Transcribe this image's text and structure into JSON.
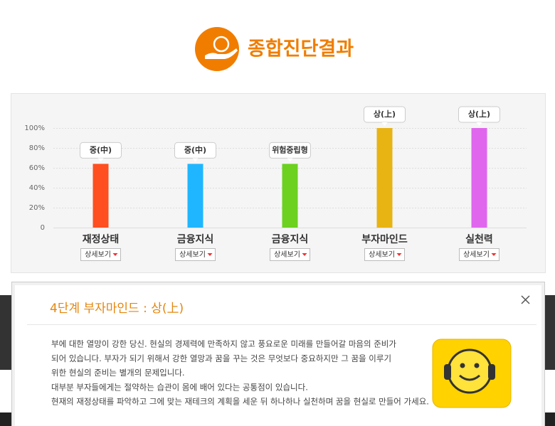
{
  "header": {
    "title": "종합진단결과"
  },
  "chart_data": {
    "type": "bar",
    "categories": [
      "재정상태",
      "금융지식",
      "금융지식",
      "부자마인드",
      "실천력"
    ],
    "values": [
      64,
      64,
      64,
      100,
      100
    ],
    "bar_labels": [
      "중(中)",
      "중(中)",
      "위험중립형",
      "상(上)",
      "상(上)"
    ],
    "colors": [
      "#ff4e1f",
      "#1fb6ff",
      "#6cd11f",
      "#e8b414",
      "#e066ee"
    ],
    "ylim": [
      0,
      100
    ],
    "yticks": [
      0,
      {
        "value": 20,
        "label": "20%"
      },
      {
        "value": 40,
        "label": "40%"
      },
      {
        "value": 60,
        "label": "60%"
      },
      {
        "value": 80,
        "label": "80%"
      },
      {
        "value": 100,
        "label": "100%"
      }
    ],
    "grid": true,
    "detail_buttons": [
      "상세보기",
      "상세보기",
      "상세보기",
      "상세보기",
      "상세보기"
    ]
  },
  "popup": {
    "title": "4단계  부자마인드 : 상(上)",
    "lines": [
      "부에 대한 열망이 강한 당신. 현실의 경제력에 만족하지 않고 풍요로운 미래를 만들어갈 마음의 준비가",
      "되어 있습니다. 부자가 되기 위해서 강한 열망과 꿈을 꾸는 것은 무엇보다 중요하지만 그 꿈을 이루기",
      "위한 현실의 준비는 별개의 문제입니다.",
      "대부분 부자들에게는 절약하는 습관이 몸에 배어 있다는 공통점이 있습니다.",
      "현재의 재정상태를 파악하고 그에 맞는 재테크의 계획을 세운 뒤 하나하나 실천하며 꿈을 현실로 만들어 가세요."
    ]
  }
}
